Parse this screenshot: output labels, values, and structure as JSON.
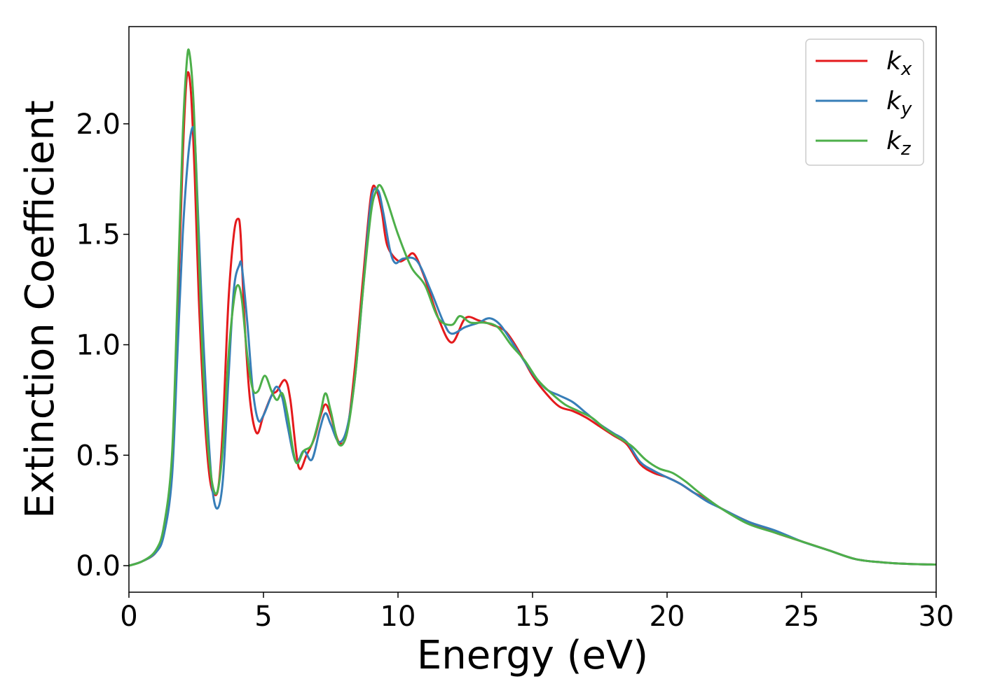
{
  "chart_data": {
    "type": "line",
    "title": "",
    "xlabel": "Energy (eV)",
    "ylabel": "Extinction Coefficient",
    "xlim": [
      0,
      30
    ],
    "ylim": [
      -0.12,
      2.44
    ],
    "xticks": [
      0,
      5,
      10,
      15,
      20,
      25,
      30
    ],
    "xtick_labels": [
      "0",
      "5",
      "10",
      "15",
      "20",
      "25",
      "30"
    ],
    "yticks": [
      0.0,
      0.5,
      1.0,
      1.5,
      2.0
    ],
    "ytick_labels": [
      "0.0",
      "0.5",
      "1.0",
      "1.5",
      "2.0"
    ],
    "grid": false,
    "legend_position": "top-right",
    "series": [
      {
        "name": "k_x",
        "label_main": "k",
        "label_sub": "x",
        "color": "#e41a1c",
        "x": [
          0,
          0.5,
          1.0,
          1.3,
          1.6,
          1.8,
          2.0,
          2.15,
          2.3,
          2.45,
          2.6,
          2.8,
          3.0,
          3.2,
          3.35,
          3.5,
          3.7,
          3.9,
          4.05,
          4.15,
          4.3,
          4.5,
          4.75,
          5.0,
          5.3,
          5.5,
          5.8,
          6.0,
          6.3,
          6.6,
          6.9,
          7.1,
          7.3,
          7.5,
          7.8,
          8.1,
          8.4,
          8.7,
          9.0,
          9.2,
          9.4,
          9.6,
          10.0,
          10.3,
          10.6,
          11.0,
          11.5,
          12.0,
          12.5,
          13.0,
          13.5,
          14.0,
          14.5,
          15.0,
          15.5,
          16.0,
          16.5,
          17.0,
          17.5,
          18.0,
          18.5,
          19.0,
          19.5,
          20.0,
          20.5,
          21.0,
          21.5,
          22.0,
          23.0,
          24.0,
          25.0,
          26.0,
          27.0,
          28.0,
          29.0,
          30.0
        ],
        "y": [
          0.0,
          0.02,
          0.06,
          0.15,
          0.45,
          1.1,
          1.85,
          2.21,
          2.15,
          1.75,
          1.2,
          0.7,
          0.4,
          0.32,
          0.38,
          0.65,
          1.2,
          1.5,
          1.57,
          1.5,
          1.1,
          0.75,
          0.6,
          0.68,
          0.77,
          0.79,
          0.84,
          0.75,
          0.45,
          0.5,
          0.58,
          0.67,
          0.73,
          0.68,
          0.56,
          0.6,
          0.9,
          1.3,
          1.68,
          1.7,
          1.6,
          1.45,
          1.38,
          1.39,
          1.41,
          1.3,
          1.12,
          1.01,
          1.12,
          1.11,
          1.09,
          1.06,
          0.97,
          0.86,
          0.78,
          0.72,
          0.7,
          0.67,
          0.63,
          0.59,
          0.55,
          0.46,
          0.42,
          0.4,
          0.37,
          0.33,
          0.3,
          0.26,
          0.2,
          0.15,
          0.11,
          0.07,
          0.03,
          0.015,
          0.008,
          0.005
        ]
      },
      {
        "name": "k_y",
        "label_main": "k",
        "label_sub": "y",
        "color": "#377eb8",
        "x": [
          0,
          0.5,
          1.0,
          1.3,
          1.6,
          1.8,
          2.0,
          2.2,
          2.35,
          2.45,
          2.55,
          2.7,
          2.9,
          3.1,
          3.3,
          3.5,
          3.7,
          3.9,
          4.1,
          4.2,
          4.4,
          4.6,
          4.8,
          5.0,
          5.3,
          5.5,
          5.7,
          5.9,
          6.2,
          6.5,
          6.8,
          7.1,
          7.3,
          7.5,
          7.8,
          8.1,
          8.4,
          8.7,
          9.0,
          9.25,
          9.45,
          9.7,
          9.9,
          10.2,
          10.7,
          11.2,
          11.7,
          12.0,
          12.5,
          13.0,
          13.4,
          13.8,
          14.3,
          15.0,
          15.5,
          16.0,
          16.5,
          17.0,
          17.5,
          18.0,
          18.5,
          19.0,
          19.5,
          20.0,
          20.5,
          21.0,
          21.5,
          22.0,
          23.0,
          24.0,
          25.0,
          26.0,
          27.0,
          28.0,
          29.0,
          30.0
        ],
        "y": [
          0.0,
          0.02,
          0.06,
          0.14,
          0.4,
          0.95,
          1.5,
          1.85,
          1.98,
          1.93,
          1.65,
          1.2,
          0.7,
          0.35,
          0.26,
          0.4,
          0.85,
          1.25,
          1.36,
          1.35,
          1.1,
          0.8,
          0.66,
          0.68,
          0.77,
          0.81,
          0.76,
          0.63,
          0.47,
          0.52,
          0.48,
          0.62,
          0.69,
          0.64,
          0.56,
          0.62,
          0.85,
          1.25,
          1.65,
          1.7,
          1.6,
          1.43,
          1.37,
          1.39,
          1.38,
          1.25,
          1.1,
          1.05,
          1.08,
          1.1,
          1.12,
          1.09,
          1.0,
          0.87,
          0.8,
          0.77,
          0.74,
          0.69,
          0.64,
          0.6,
          0.56,
          0.47,
          0.43,
          0.4,
          0.37,
          0.33,
          0.29,
          0.26,
          0.2,
          0.16,
          0.11,
          0.07,
          0.03,
          0.015,
          0.008,
          0.005
        ]
      },
      {
        "name": "k_z",
        "label_main": "k",
        "label_sub": "z",
        "color": "#4daf4a",
        "x": [
          0,
          0.5,
          1.0,
          1.3,
          1.6,
          1.8,
          2.0,
          2.15,
          2.25,
          2.4,
          2.55,
          2.7,
          2.9,
          3.1,
          3.3,
          3.5,
          3.7,
          3.9,
          4.05,
          4.2,
          4.4,
          4.6,
          4.8,
          5.05,
          5.3,
          5.5,
          5.7,
          5.9,
          6.2,
          6.5,
          6.8,
          7.1,
          7.3,
          7.5,
          7.8,
          8.1,
          8.4,
          8.7,
          9.0,
          9.2,
          9.35,
          9.6,
          10.0,
          10.5,
          11.0,
          11.5,
          12.0,
          12.3,
          12.7,
          13.2,
          13.7,
          14.2,
          14.7,
          15.2,
          15.7,
          16.2,
          16.7,
          17.2,
          17.7,
          18.2,
          18.7,
          19.2,
          19.7,
          20.2,
          20.7,
          21.2,
          22.0,
          23.0,
          24.0,
          25.0,
          26.0,
          27.0,
          28.0,
          29.0,
          30.0
        ],
        "y": [
          0.0,
          0.02,
          0.07,
          0.18,
          0.5,
          1.2,
          1.95,
          2.28,
          2.32,
          2.1,
          1.6,
          1.05,
          0.6,
          0.37,
          0.34,
          0.55,
          0.95,
          1.2,
          1.27,
          1.2,
          0.95,
          0.8,
          0.79,
          0.86,
          0.79,
          0.75,
          0.78,
          0.68,
          0.47,
          0.52,
          0.55,
          0.68,
          0.78,
          0.7,
          0.55,
          0.6,
          0.85,
          1.25,
          1.6,
          1.7,
          1.72,
          1.65,
          1.5,
          1.35,
          1.27,
          1.12,
          1.09,
          1.13,
          1.1,
          1.1,
          1.08,
          1.0,
          0.93,
          0.84,
          0.78,
          0.73,
          0.7,
          0.67,
          0.62,
          0.58,
          0.54,
          0.48,
          0.44,
          0.42,
          0.38,
          0.33,
          0.26,
          0.19,
          0.15,
          0.11,
          0.07,
          0.03,
          0.015,
          0.008,
          0.005
        ]
      }
    ]
  }
}
